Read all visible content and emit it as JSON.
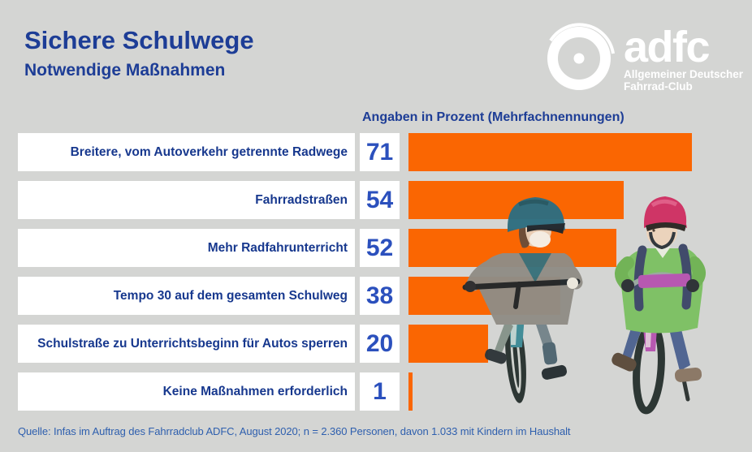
{
  "title": "Sichere Schulwege",
  "subtitle": "Notwendige Maßnahmen",
  "logo": {
    "brand": "adfc",
    "tagline_line1": "Allgemeiner Deutscher",
    "tagline_line2": "Fahrrad-Club"
  },
  "chart_data": {
    "type": "bar",
    "orientation": "horizontal",
    "title": "Sichere Schulwege – Notwendige Maßnahmen",
    "header": "Angaben in Prozent (Mehrfachnennungen)",
    "unit": "percent",
    "categories": [
      "Breitere, vom Autoverkehr getrennte Radwege",
      "Fahrradstraßen",
      "Mehr Radfahrunterricht",
      "Tempo 30 auf dem gesamten Schulweg",
      "Schulstraße zu Unterrichtsbeginn für Autos sperren",
      "Keine Maßnahmen erforderlich"
    ],
    "values": [
      71,
      54,
      52,
      38,
      20,
      1
    ],
    "xlim": [
      0,
      85
    ],
    "grid": false,
    "legend": false,
    "bar_color": "#FA6602"
  },
  "colors": {
    "background": "#D4D5D3",
    "accent_orange": "#FA6602",
    "navy_title": "#1D3D96",
    "label_navy": "#17388E",
    "value_blue": "#2B50BD",
    "source_blue": "#2E5FAE",
    "box_white": "#FFFFFF",
    "logo_white": "#FFFFFF"
  },
  "source": "Quelle: Infas im Auftrag des Fahrradclub ADFC, August 2020; n = 2.360 Personen, davon 1.033 mit Kindern im Haushalt",
  "illustration": "two-children-riding-bicycles"
}
